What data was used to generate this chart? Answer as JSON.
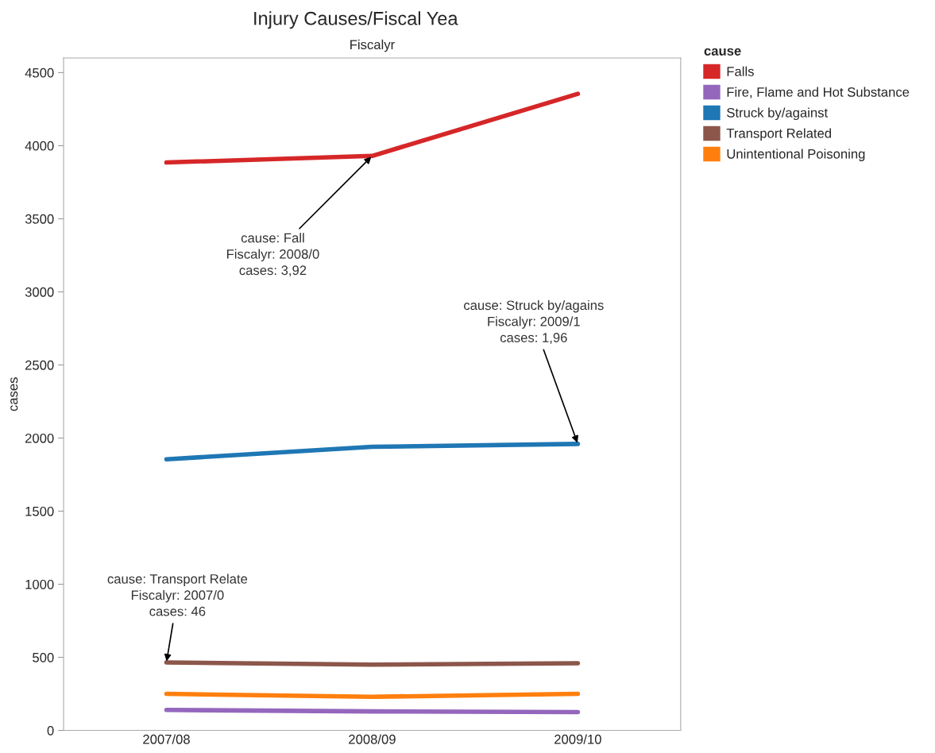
{
  "chart_data": {
    "type": "line",
    "title": "Injury Causes/Fiscal Yea",
    "subtitle": "Fiscalyr",
    "ylabel": "cases",
    "legend_title": "cause",
    "categories": [
      "2007/08",
      "2008/09",
      "2009/10"
    ],
    "series": [
      {
        "name": "Falls",
        "color": "#d62728",
        "values": [
          3885,
          3930,
          4355
        ]
      },
      {
        "name": "Fire, Flame and Hot Substance",
        "color": "#9467bd",
        "values": [
          140,
          130,
          125
        ]
      },
      {
        "name": "Struck by/against",
        "color": "#1f77b4",
        "values": [
          1855,
          1940,
          1960
        ]
      },
      {
        "name": "Transport Related",
        "color": "#8c564b",
        "values": [
          465,
          450,
          460
        ]
      },
      {
        "name": "Unintentional Poisoning",
        "color": "#ff7f0e",
        "values": [
          250,
          230,
          250
        ]
      }
    ],
    "ylim": [
      0,
      4600
    ],
    "yticks": [
      0,
      500,
      1000,
      1500,
      2000,
      2500,
      3000,
      3500,
      4000,
      4500
    ],
    "annotations": [
      {
        "text": "cause: Fall\nFiscalyr: 2008/0\ncases: 3,92",
        "x": "2008/09",
        "y": 3930
      },
      {
        "text": "cause: Struck by/agains\nFiscalyr: 2009/1\ncases: 1,96",
        "x": "2009/10",
        "y": 1960
      },
      {
        "text": "cause: Transport Relate\nFiscalyr: 2007/0\ncases: 46",
        "x": "2007/08",
        "y": 465
      }
    ],
    "grid": false,
    "legend": "top right",
    "marker": "none",
    "line_style": "solid"
  }
}
